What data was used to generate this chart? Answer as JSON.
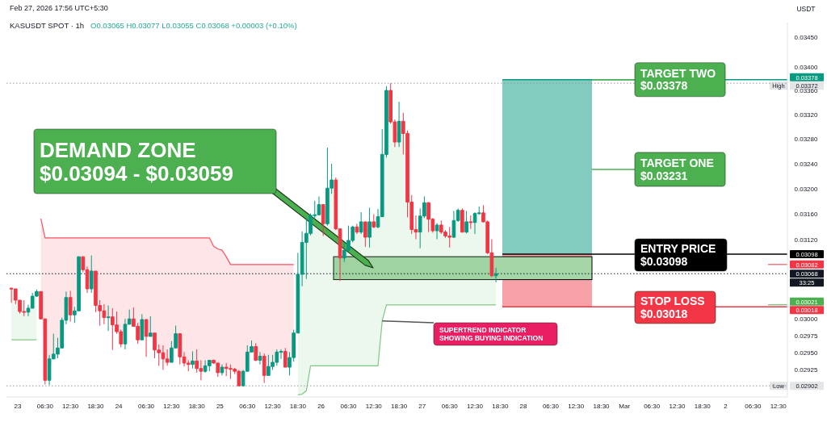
{
  "chart_data": {
    "type": "candlestick",
    "title": "KASUSDT SPOT · 1h",
    "subtitle": "O0.03065 H0.03077 L0.03055 C0.03068 +0.00003 (+0.10%)",
    "ylabel": "USDT",
    "log": true,
    "xlim": [
      "2026-02-22T21:20",
      "2026-03-02T14:40"
    ],
    "ylim": [
      0.02886,
      0.03475
    ],
    "xticks": [
      {
        "value": "2026-02-23T00:00",
        "label": "23"
      },
      {
        "value": "2026-02-23T06:30",
        "label": "06:30"
      },
      {
        "value": "2026-02-23T12:30",
        "label": "12:30"
      },
      {
        "value": "2026-02-23T18:30",
        "label": "18:30"
      },
      {
        "value": "2026-02-24T00:00",
        "label": "24"
      },
      {
        "value": "2026-02-24T06:30",
        "label": "06:30"
      },
      {
        "value": "2026-02-24T12:30",
        "label": "12:30"
      },
      {
        "value": "2026-02-24T18:30",
        "label": "18:30"
      },
      {
        "value": "2026-02-25T00:00",
        "label": "25"
      },
      {
        "value": "2026-02-25T06:30",
        "label": "06:30"
      },
      {
        "value": "2026-02-25T12:30",
        "label": "12:30"
      },
      {
        "value": "2026-02-25T18:30",
        "label": "18:30"
      },
      {
        "value": "2026-02-26T00:00",
        "label": "26"
      },
      {
        "value": "2026-02-26T06:30",
        "label": "06:30"
      },
      {
        "value": "2026-02-26T12:30",
        "label": "12:30"
      },
      {
        "value": "2026-02-26T18:30",
        "label": "18:30"
      },
      {
        "value": "2026-02-27T00:00",
        "label": "27"
      },
      {
        "value": "2026-02-27T06:30",
        "label": "06:30"
      },
      {
        "value": "2026-02-27T12:30",
        "label": "12:30"
      },
      {
        "value": "2026-02-27T18:30",
        "label": "18:30"
      },
      {
        "value": "2026-02-28T00:00",
        "label": "28"
      },
      {
        "value": "2026-02-28T06:30",
        "label": "06:30"
      },
      {
        "value": "2026-02-28T12:30",
        "label": "12:30"
      },
      {
        "value": "2026-02-28T18:30",
        "label": "18:30"
      },
      {
        "value": "2026-03-01T00:00",
        "label": "Mar"
      },
      {
        "value": "2026-03-01T06:30",
        "label": "06:30"
      },
      {
        "value": "2026-03-01T12:30",
        "label": "12:30"
      },
      {
        "value": "2026-03-01T18:30",
        "label": "18:30"
      },
      {
        "value": "2026-03-02T00:00",
        "label": "2"
      },
      {
        "value": "2026-03-02T06:30",
        "label": "06:30"
      },
      {
        "value": "2026-03-02T12:30",
        "label": "12:30"
      }
    ],
    "yticks": [
      {
        "value": 0.0345,
        "label": "0.03450"
      },
      {
        "value": 0.034,
        "label": "0.03400"
      },
      {
        "value": 0.0336,
        "label": "0.03360"
      },
      {
        "value": 0.0332,
        "label": "0.03320"
      },
      {
        "value": 0.0328,
        "label": "0.03280"
      },
      {
        "value": 0.0324,
        "label": "0.03240"
      },
      {
        "value": 0.032,
        "label": "0.03200"
      },
      {
        "value": 0.0316,
        "label": "0.03160"
      },
      {
        "value": 0.0312,
        "label": "0.03120"
      },
      {
        "value": 0.03,
        "label": "0.03000"
      },
      {
        "value": 0.02975,
        "label": "0.02975"
      },
      {
        "value": 0.0295,
        "label": "0.02950"
      },
      {
        "value": 0.02925,
        "label": "0.02925"
      }
    ],
    "x": [
      "2026-02-22T22:30",
      "2026-02-22T23:30",
      "2026-02-23T00:30",
      "2026-02-23T01:30",
      "2026-02-23T02:30",
      "2026-02-23T03:30",
      "2026-02-23T04:30",
      "2026-02-23T05:30",
      "2026-02-23T06:30",
      "2026-02-23T07:30",
      "2026-02-23T08:30",
      "2026-02-23T09:30",
      "2026-02-23T10:30",
      "2026-02-23T11:30",
      "2026-02-23T12:30",
      "2026-02-23T13:30",
      "2026-02-23T14:30",
      "2026-02-23T15:30",
      "2026-02-23T16:30",
      "2026-02-23T17:30",
      "2026-02-23T18:30",
      "2026-02-23T19:30",
      "2026-02-23T20:30",
      "2026-02-23T21:30",
      "2026-02-23T22:30",
      "2026-02-23T23:30",
      "2026-02-24T00:30",
      "2026-02-24T01:30",
      "2026-02-24T02:30",
      "2026-02-24T03:30",
      "2026-02-24T04:30",
      "2026-02-24T05:30",
      "2026-02-24T06:30",
      "2026-02-24T07:30",
      "2026-02-24T08:30",
      "2026-02-24T09:30",
      "2026-02-24T10:30",
      "2026-02-24T11:30",
      "2026-02-24T12:30",
      "2026-02-24T13:30",
      "2026-02-24T14:30",
      "2026-02-24T15:30",
      "2026-02-24T16:30",
      "2026-02-24T17:30",
      "2026-02-24T18:30",
      "2026-02-24T19:30",
      "2026-02-24T20:30",
      "2026-02-24T21:30",
      "2026-02-24T22:30",
      "2026-02-24T23:30",
      "2026-02-25T00:30",
      "2026-02-25T01:30",
      "2026-02-25T02:30",
      "2026-02-25T03:30",
      "2026-02-25T04:30",
      "2026-02-25T05:30",
      "2026-02-25T06:30",
      "2026-02-25T07:30",
      "2026-02-25T08:30",
      "2026-02-25T09:30",
      "2026-02-25T10:30",
      "2026-02-25T11:30",
      "2026-02-25T12:30",
      "2026-02-25T13:30",
      "2026-02-25T14:30",
      "2026-02-25T15:30",
      "2026-02-25T16:30",
      "2026-02-25T17:30",
      "2026-02-25T18:30",
      "2026-02-25T19:30",
      "2026-02-25T20:30",
      "2026-02-25T21:30",
      "2026-02-25T22:30",
      "2026-02-25T23:30",
      "2026-02-26T00:30",
      "2026-02-26T01:30",
      "2026-02-26T02:30",
      "2026-02-26T03:30",
      "2026-02-26T04:30",
      "2026-02-26T05:30",
      "2026-02-26T06:30",
      "2026-02-26T07:30",
      "2026-02-26T08:30",
      "2026-02-26T09:30",
      "2026-02-26T10:30",
      "2026-02-26T11:30",
      "2026-02-26T12:30",
      "2026-02-26T13:30",
      "2026-02-26T14:30",
      "2026-02-26T15:30",
      "2026-02-26T16:30",
      "2026-02-26T17:30",
      "2026-02-26T18:30",
      "2026-02-26T19:30",
      "2026-02-26T20:30",
      "2026-02-26T21:30",
      "2026-02-26T22:30",
      "2026-02-26T23:30",
      "2026-02-27T00:30",
      "2026-02-27T01:30",
      "2026-02-27T02:30",
      "2026-02-27T03:30",
      "2026-02-27T04:30",
      "2026-02-27T05:30",
      "2026-02-27T06:30",
      "2026-02-27T07:30",
      "2026-02-27T08:30",
      "2026-02-27T09:30",
      "2026-02-27T10:30",
      "2026-02-27T11:30",
      "2026-02-27T12:30",
      "2026-02-27T13:30",
      "2026-02-27T14:30",
      "2026-02-27T15:30",
      "2026-02-27T16:30",
      "2026-02-27T17:30"
    ],
    "ohlc": [
      [
        0.03046,
        0.03047,
        0.03024,
        0.03045
      ],
      [
        0.03045,
        0.03045,
        0.03022,
        0.03028
      ],
      [
        0.03028,
        0.03028,
        0.03008,
        0.03011
      ],
      [
        0.03011,
        0.03028,
        0.03004,
        0.0301
      ],
      [
        0.0301,
        0.03021,
        0.03004,
        0.03016
      ],
      [
        0.03016,
        0.03039,
        0.03016,
        0.03034
      ],
      [
        0.03034,
        0.03044,
        0.03033,
        0.03041
      ],
      [
        0.03041,
        0.03041,
        0.03,
        0.03
      ],
      [
        0.03,
        0.03,
        0.02904,
        0.0291
      ],
      [
        0.0291,
        0.02947,
        0.02903,
        0.02941
      ],
      [
        0.02941,
        0.02978,
        0.02941,
        0.02948
      ],
      [
        0.02948,
        0.02972,
        0.02942,
        0.02957
      ],
      [
        0.02957,
        0.03002,
        0.02957,
        0.02998
      ],
      [
        0.02998,
        0.03041,
        0.02992,
        0.03032
      ],
      [
        0.03032,
        0.03042,
        0.02996,
        0.03006
      ],
      [
        0.03006,
        0.03018,
        0.02994,
        0.03012
      ],
      [
        0.03012,
        0.03094,
        0.03012,
        0.03094
      ],
      [
        0.03094,
        0.03094,
        0.0307,
        0.03074
      ],
      [
        0.03074,
        0.03079,
        0.03039,
        0.03045
      ],
      [
        0.03045,
        0.03096,
        0.03039,
        0.03072
      ],
      [
        0.03072,
        0.03072,
        0.0301,
        0.0302
      ],
      [
        0.0302,
        0.03028,
        0.0299,
        0.03012
      ],
      [
        0.03012,
        0.03022,
        0.02992,
        0.03002
      ],
      [
        0.03002,
        0.0302,
        0.02982,
        0.03003
      ],
      [
        0.03003,
        0.03016,
        0.02954,
        0.02991
      ],
      [
        0.02991,
        0.03011,
        0.02978,
        0.02981
      ],
      [
        0.02981,
        0.02984,
        0.02958,
        0.02963
      ],
      [
        0.02963,
        0.03,
        0.02955,
        0.02992
      ],
      [
        0.02992,
        0.03014,
        0.02992,
        0.03
      ],
      [
        0.03,
        0.03017,
        0.02989,
        0.02989
      ],
      [
        0.02989,
        0.02994,
        0.02963,
        0.02969
      ],
      [
        0.02969,
        0.03007,
        0.02969,
        0.02999
      ],
      [
        0.02999,
        0.02999,
        0.02944,
        0.02974
      ],
      [
        0.02974,
        0.03004,
        0.02974,
        0.02979
      ],
      [
        0.02979,
        0.02979,
        0.02942,
        0.02954
      ],
      [
        0.02954,
        0.02962,
        0.02931,
        0.0295
      ],
      [
        0.0295,
        0.02961,
        0.02925,
        0.02941
      ],
      [
        0.02941,
        0.02955,
        0.02931,
        0.02936
      ],
      [
        0.02936,
        0.02967,
        0.02936,
        0.02957
      ],
      [
        0.02957,
        0.0299,
        0.02957,
        0.02978
      ],
      [
        0.02978,
        0.02978,
        0.02933,
        0.02944
      ],
      [
        0.02944,
        0.02951,
        0.0293,
        0.02935
      ],
      [
        0.02935,
        0.02939,
        0.02923,
        0.02933
      ],
      [
        0.02933,
        0.02952,
        0.02927,
        0.02938
      ],
      [
        0.02938,
        0.02955,
        0.02921,
        0.02927
      ],
      [
        0.02927,
        0.02939,
        0.0291,
        0.02923
      ],
      [
        0.02923,
        0.02939,
        0.02921,
        0.02931
      ],
      [
        0.02931,
        0.02939,
        0.02923,
        0.02939
      ],
      [
        0.02939,
        0.0294,
        0.02934,
        0.02935
      ],
      [
        0.02935,
        0.02935,
        0.02915,
        0.02921
      ],
      [
        0.02921,
        0.02933,
        0.02917,
        0.02929
      ],
      [
        0.02929,
        0.02935,
        0.02916,
        0.02927
      ],
      [
        0.02927,
        0.02933,
        0.02912,
        0.02926
      ],
      [
        0.02926,
        0.02928,
        0.02919,
        0.02923
      ],
      [
        0.02923,
        0.02925,
        0.02902,
        0.02902
      ],
      [
        0.02902,
        0.02925,
        0.02902,
        0.02923
      ],
      [
        0.02923,
        0.02961,
        0.02923,
        0.02951
      ],
      [
        0.02951,
        0.02968,
        0.02951,
        0.02959
      ],
      [
        0.02959,
        0.02964,
        0.02938,
        0.02939
      ],
      [
        0.02939,
        0.02951,
        0.02933,
        0.02945
      ],
      [
        0.02945,
        0.02949,
        0.02906,
        0.02917
      ],
      [
        0.02917,
        0.02947,
        0.02917,
        0.0293
      ],
      [
        0.0293,
        0.02947,
        0.02925,
        0.02936
      ],
      [
        0.02936,
        0.02955,
        0.02931,
        0.02951
      ],
      [
        0.02951,
        0.02955,
        0.02941,
        0.02952
      ],
      [
        0.02952,
        0.02957,
        0.02929,
        0.02929
      ],
      [
        0.02929,
        0.02951,
        0.02917,
        0.02943
      ],
      [
        0.02943,
        0.02984,
        0.02937,
        0.02979
      ],
      [
        0.02979,
        0.031,
        0.02979,
        0.03067
      ],
      [
        0.03067,
        0.03133,
        0.03049,
        0.03116
      ],
      [
        0.03116,
        0.03154,
        0.0306,
        0.0313
      ],
      [
        0.0313,
        0.03161,
        0.03127,
        0.03158
      ],
      [
        0.03158,
        0.03181,
        0.03154,
        0.03159
      ],
      [
        0.03159,
        0.03188,
        0.03159,
        0.03175
      ],
      [
        0.03175,
        0.03175,
        0.03126,
        0.03145
      ],
      [
        0.03145,
        0.03266,
        0.03142,
        0.03201
      ],
      [
        0.03201,
        0.0324,
        0.03192,
        0.03214
      ],
      [
        0.03214,
        0.03218,
        0.03135,
        0.03137
      ],
      [
        0.03137,
        0.03137,
        0.03057,
        0.03092
      ],
      [
        0.03092,
        0.03116,
        0.03086,
        0.03104
      ],
      [
        0.03104,
        0.03142,
        0.03102,
        0.03119
      ],
      [
        0.03119,
        0.03142,
        0.03116,
        0.0314
      ],
      [
        0.0314,
        0.03145,
        0.03129,
        0.03132
      ],
      [
        0.03132,
        0.03163,
        0.03129,
        0.03148
      ],
      [
        0.03148,
        0.03148,
        0.03109,
        0.03124
      ],
      [
        0.03124,
        0.0317,
        0.03108,
        0.03148
      ],
      [
        0.03148,
        0.0316,
        0.03138,
        0.0314
      ],
      [
        0.0314,
        0.03168,
        0.03138,
        0.03156
      ],
      [
        0.03156,
        0.03296,
        0.03156,
        0.03255
      ],
      [
        0.03255,
        0.03367,
        0.0325,
        0.0336
      ],
      [
        0.0336,
        0.03372,
        0.03305,
        0.03308
      ],
      [
        0.03308,
        0.03312,
        0.03267,
        0.03275
      ],
      [
        0.03275,
        0.03341,
        0.03267,
        0.03309
      ],
      [
        0.03309,
        0.03323,
        0.03255,
        0.03289
      ],
      [
        0.03289,
        0.03294,
        0.03155,
        0.03179
      ],
      [
        0.03179,
        0.0319,
        0.03129,
        0.03136
      ],
      [
        0.03136,
        0.03158,
        0.03121,
        0.03132
      ],
      [
        0.03132,
        0.03169,
        0.03107,
        0.03157
      ],
      [
        0.03157,
        0.03188,
        0.03154,
        0.03178
      ],
      [
        0.03178,
        0.03179,
        0.03132,
        0.03152
      ],
      [
        0.03152,
        0.03154,
        0.03131,
        0.03134
      ],
      [
        0.03134,
        0.03146,
        0.03121,
        0.03143
      ],
      [
        0.03143,
        0.0315,
        0.03129,
        0.03132
      ],
      [
        0.03132,
        0.03135,
        0.03123,
        0.03126
      ],
      [
        0.03126,
        0.0314,
        0.03108,
        0.03124
      ],
      [
        0.03124,
        0.03165,
        0.03123,
        0.0315
      ],
      [
        0.0315,
        0.03169,
        0.03148,
        0.03166
      ],
      [
        0.03166,
        0.03169,
        0.03131,
        0.03132
      ],
      [
        0.03132,
        0.03165,
        0.0313,
        0.03148
      ],
      [
        0.03148,
        0.03158,
        0.03137,
        0.03147
      ],
      [
        0.03147,
        0.03163,
        0.03129,
        0.03161
      ],
      [
        0.03161,
        0.03172,
        0.03159,
        0.03162
      ],
      [
        0.03162,
        0.03174,
        0.03147,
        0.03148
      ],
      [
        0.03148,
        0.0315,
        0.03098,
        0.031
      ],
      [
        0.031,
        0.03121,
        0.03063,
        0.03065
      ],
      [
        0.03065,
        0.03077,
        0.03055,
        0.03068
      ]
    ],
    "colors": [
      "#f23645",
      "#f23645",
      "#f23645",
      "#f23645",
      "#089981",
      "#089981",
      "#089981",
      "#f23645",
      "#f23645",
      "#089981",
      "#089981",
      "#089981",
      "#089981",
      "#089981",
      "#f23645",
      "#089981",
      "#089981",
      "#f23645",
      "#f23645",
      "#089981",
      "#f23645",
      "#f23645",
      "#f23645",
      "#089981",
      "#f23645",
      "#f23645",
      "#f23645",
      "#089981",
      "#089981",
      "#f23645",
      "#f23645",
      "#089981",
      "#f23645",
      "#089981",
      "#f23645",
      "#f23645",
      "#f23645",
      "#f23645",
      "#089981",
      "#089981",
      "#f23645",
      "#f23645",
      "#f23645",
      "#089981",
      "#f23645",
      "#f23645",
      "#089981",
      "#089981",
      "#f23645",
      "#f23645",
      "#089981",
      "#f23645",
      "#f23645",
      "#f23645",
      "#f23645",
      "#089981",
      "#089981",
      "#089981",
      "#f23645",
      "#089981",
      "#f23645",
      "#089981",
      "#089981",
      "#089981",
      "#089981",
      "#f23645",
      "#089981",
      "#089981",
      "#089981",
      "#089981",
      "#089981",
      "#089981",
      "#089981",
      "#089981",
      "#f23645",
      "#089981",
      "#089981",
      "#f23645",
      "#f23645",
      "#089981",
      "#089981",
      "#089981",
      "#f23645",
      "#089981",
      "#f23645",
      "#089981",
      "#f23645",
      "#089981",
      "#089981",
      "#089981",
      "#f23645",
      "#f23645",
      "#089981",
      "#f23645",
      "#f23645",
      "#f23645",
      "#f23645",
      "#089981",
      "#089981",
      "#f23645",
      "#f23645",
      "#089981",
      "#f23645",
      "#f23645",
      "#f23645",
      "#089981",
      "#089981",
      "#f23645",
      "#089981",
      "#f23645",
      "#089981",
      "#089981",
      "#f23645",
      "#f23645",
      "#f23645",
      "#089981"
    ],
    "series": [
      {
        "type": "line",
        "color": "#81c784",
        "x": [
          "2026-02-22T22:30",
          "2026-02-23T04:30"
        ],
        "values": [
          0.02969,
          0.02969
        ]
      },
      {
        "type": "line",
        "color": "#f7525f",
        "x": [
          "2026-02-23T05:30",
          "2026-02-23T06:30",
          "2026-02-24T21:30",
          "2026-02-24T22:30",
          "2026-02-24T23:30",
          "2026-02-25T00:30",
          "2026-02-25T01:30",
          "2026-02-25T02:30",
          "2026-02-25T17:30"
        ],
        "values": [
          0.03153,
          0.03123,
          0.03123,
          0.0311,
          0.03106,
          0.03104,
          0.03094,
          0.03082,
          0.03082
        ]
      },
      {
        "type": "line",
        "color": "#81c784",
        "x": [
          "2026-02-25T18:30",
          "2026-02-25T19:30",
          "2026-02-25T20:30",
          "2026-02-25T21:30",
          "2026-02-26T13:30",
          "2026-02-26T14:30",
          "2026-02-26T15:30",
          "2026-02-27T17:30"
        ],
        "values": [
          0.02889,
          0.0289,
          0.02895,
          0.02931,
          0.02931,
          0.02997,
          0.03021,
          0.03021
        ]
      }
    ],
    "bands": [
      {
        "axis": "y",
        "from": 0.03098,
        "to": 0.03378,
        "color": "#81ccbf"
      },
      {
        "axis": "y",
        "from": 0.03018,
        "to": 0.03098,
        "color": "#f7a1a8"
      },
      {
        "axis": "y",
        "from": 0.03059,
        "to": 0.03094,
        "color": "#a5d6a7"
      }
    ],
    "ref_lines": [
      {
        "axis": "y",
        "value": 0.03372,
        "label": "High\n0.03372",
        "color": "#9598a1",
        "line_style": "dotted"
      },
      {
        "axis": "y",
        "value": 0.02902,
        "label": "Low\n0.02902",
        "color": "#9598a1",
        "line_style": "dotted"
      },
      {
        "axis": "y",
        "value": 0.03068,
        "label": "0.03068",
        "color": "#131722",
        "line_style": "dotted"
      },
      {
        "axis": "y",
        "value": 0.03378,
        "label": "0.03378",
        "color": "#089981"
      },
      {
        "axis": "y",
        "value": 0.03098,
        "label": "0.03098",
        "color": "#000000"
      },
      {
        "axis": "y",
        "value": 0.03018,
        "label": "0.03018",
        "color": "#f23645"
      },
      {
        "axis": "y",
        "value": 0.03082,
        "label": "0.03082",
        "color": "#f23645"
      },
      {
        "axis": "y",
        "value": 0.03021,
        "label": "0.03021",
        "color": "#4caf50"
      }
    ],
    "annotations": [
      "Feb 27, 2026 17:56 UTC+5:30",
      "DEMAND ZONE\n$0.03094 - $0.03059",
      {
        "text": "TARGET TWO\n$0.03378",
        "x": "2026-02-28T16:15",
        "y": 0.03378
      },
      {
        "text": "TARGET ONE\n$0.03231",
        "x": "2026-02-28T16:15",
        "y": 0.03231
      },
      "ENTRY PRICE\n$0.03098",
      "STOP LOSS\n$0.03018",
      {
        "text": "SUPERTREND INDICATOR\nSHOWING BUYING INDICATION",
        "x": "2026-02-26T14:30",
        "y": 0.02997
      },
      "33:25"
    ]
  }
}
